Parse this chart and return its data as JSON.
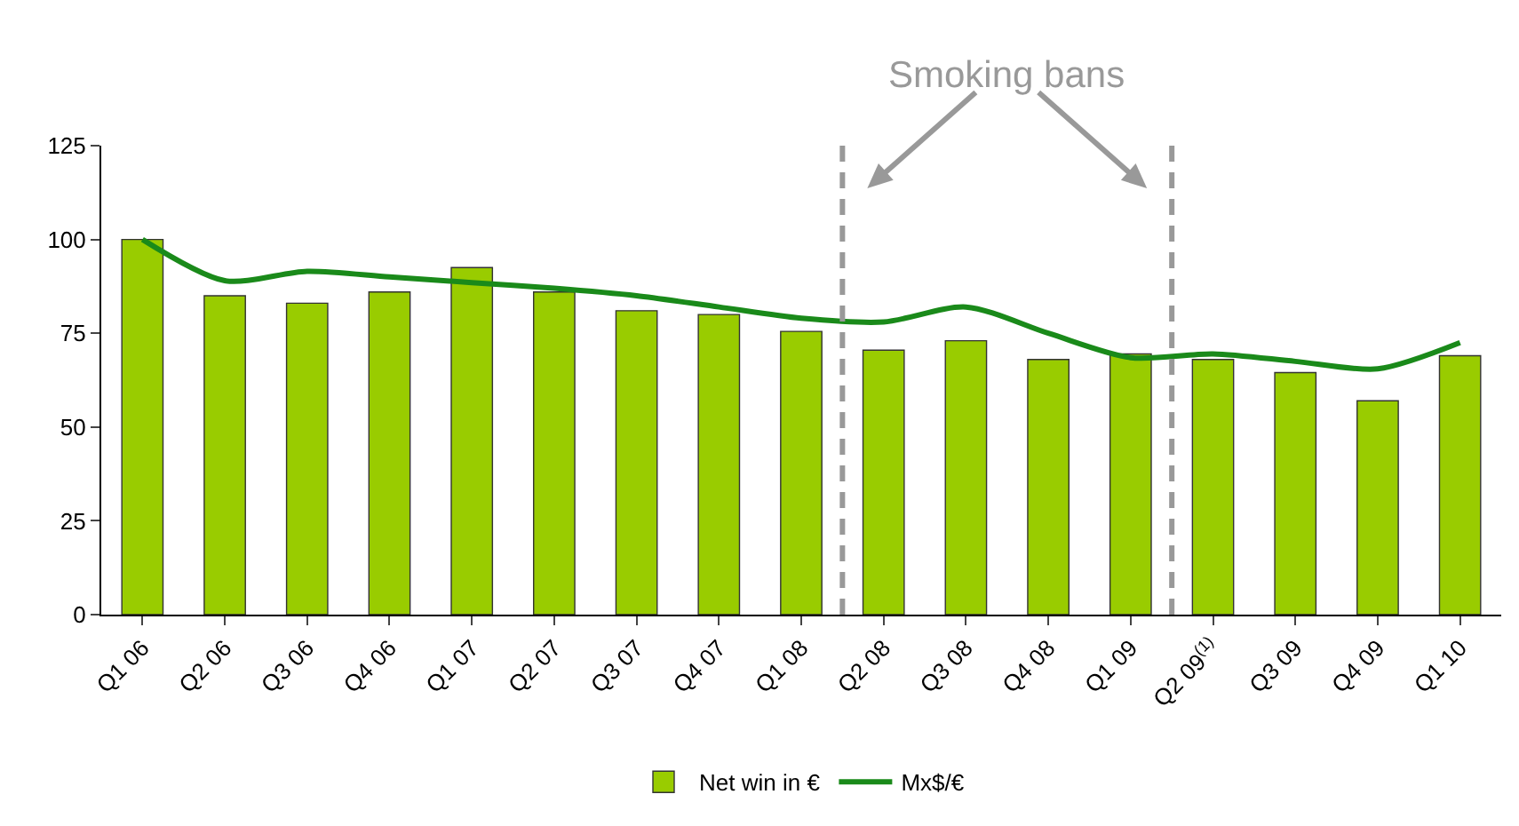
{
  "chart_data": {
    "type": "bar",
    "categories": [
      "Q1 06",
      "Q2 06",
      "Q3 06",
      "Q4 06",
      "Q1 07",
      "Q2 07",
      "Q3 07",
      "Q4 07",
      "Q1 08",
      "Q2 08",
      "Q3 08",
      "Q4 08",
      "Q1 09",
      "Q2 09$^{(1)}$",
      "Q3 09",
      "Q4 09",
      "Q1 10"
    ],
    "series": [
      {
        "name": "Net win in €",
        "color": "#99cc00",
        "values": [
          100,
          85,
          83,
          86,
          92.5,
          86,
          81,
          80,
          75.5,
          70.5,
          73,
          68,
          69.5,
          68,
          64.5,
          57,
          69
        ]
      },
      {
        "name": "Mx$/€",
        "type": "line",
        "color": "#1a8a1a",
        "values": [
          100,
          89,
          91.5,
          90,
          88.5,
          87,
          85,
          82,
          79,
          78,
          82,
          75,
          68.5,
          69.5,
          67.5,
          65.5,
          72.5
        ]
      }
    ],
    "ylim": [
      0,
      125
    ],
    "yticks": [
      0,
      25,
      50,
      75,
      100,
      125
    ],
    "grid": false,
    "legend": "bottom",
    "marker": "none",
    "line_style": "solid",
    "annotations": [
      "Smoking bans"
    ]
  }
}
